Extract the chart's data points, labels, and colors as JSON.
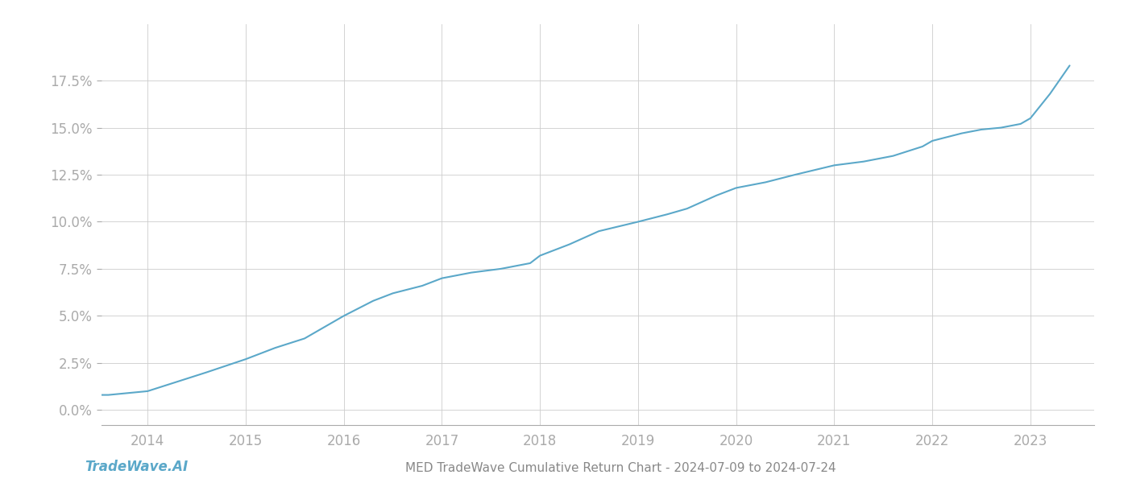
{
  "title": "MED TradeWave Cumulative Return Chart - 2024-07-09 to 2024-07-24",
  "watermark": "TradeWave.AI",
  "line_color": "#5ba8c9",
  "background_color": "#ffffff",
  "grid_color": "#cccccc",
  "x_years": [
    2014,
    2015,
    2016,
    2017,
    2018,
    2019,
    2020,
    2021,
    2022,
    2023
  ],
  "x_values": [
    2013.53,
    2013.6,
    2014.0,
    2014.3,
    2014.6,
    2015.0,
    2015.3,
    2015.6,
    2016.0,
    2016.3,
    2016.5,
    2016.8,
    2017.0,
    2017.3,
    2017.6,
    2017.9,
    2018.0,
    2018.3,
    2018.6,
    2019.0,
    2019.3,
    2019.5,
    2019.8,
    2020.0,
    2020.3,
    2020.6,
    2021.0,
    2021.3,
    2021.6,
    2021.9,
    2022.0,
    2022.3,
    2022.5,
    2022.7,
    2022.9,
    2023.0,
    2023.2,
    2023.4
  ],
  "y_values": [
    0.008,
    0.008,
    0.01,
    0.015,
    0.02,
    0.027,
    0.033,
    0.038,
    0.05,
    0.058,
    0.062,
    0.066,
    0.07,
    0.073,
    0.075,
    0.078,
    0.082,
    0.088,
    0.095,
    0.1,
    0.104,
    0.107,
    0.114,
    0.118,
    0.121,
    0.125,
    0.13,
    0.132,
    0.135,
    0.14,
    0.143,
    0.147,
    0.149,
    0.15,
    0.152,
    0.155,
    0.168,
    0.183
  ],
  "yticks": [
    0.0,
    0.025,
    0.05,
    0.075,
    0.1,
    0.125,
    0.15,
    0.175
  ],
  "ylim": [
    -0.008,
    0.205
  ],
  "xlim": [
    2013.53,
    2023.65
  ],
  "tick_label_color": "#aaaaaa",
  "title_color": "#888888",
  "watermark_color": "#5ba8c9",
  "line_width": 1.5,
  "tick_fontsize": 12,
  "title_fontsize": 11,
  "watermark_fontsize": 12
}
